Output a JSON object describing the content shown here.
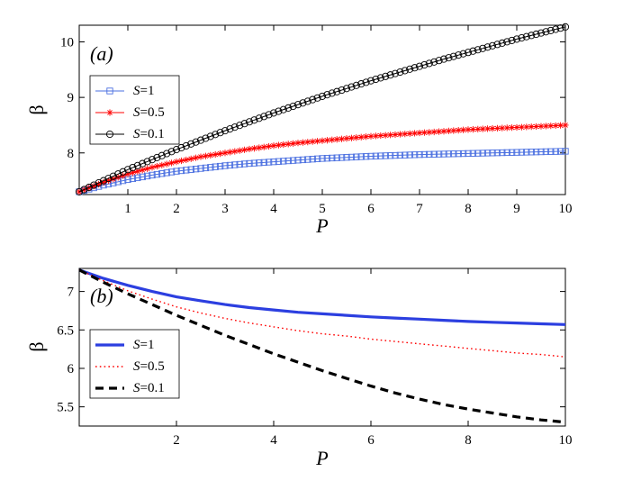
{
  "chart_data": [
    {
      "type": "line",
      "panel_label": "(a)",
      "xlabel": "P",
      "ylabel": "β",
      "xlim": [
        0,
        10
      ],
      "ylim": [
        7.25,
        10.3
      ],
      "xticks": [
        "1",
        "2",
        "3",
        "4",
        "5",
        "6",
        "7",
        "8",
        "9",
        "10"
      ],
      "yticks": [
        "8",
        "9",
        "10"
      ],
      "grid": false,
      "legend_position": "upper-left",
      "legend_entries": [
        {
          "var": "S",
          "text": "=1"
        },
        {
          "var": "S",
          "text": "=0.5"
        },
        {
          "var": "S",
          "text": "=0.1"
        }
      ],
      "series": [
        {
          "name": "S=1",
          "color": "#4a6fe0",
          "marker": "square",
          "x": [
            0,
            0.5,
            1,
            1.5,
            2,
            2.5,
            3,
            3.5,
            4,
            4.5,
            5,
            5.5,
            6,
            6.5,
            7,
            7.5,
            8,
            8.5,
            9,
            9.5,
            10
          ],
          "y": [
            7.3,
            7.42,
            7.52,
            7.6,
            7.67,
            7.72,
            7.77,
            7.81,
            7.84,
            7.87,
            7.9,
            7.92,
            7.94,
            7.955,
            7.97,
            7.98,
            7.99,
            8.0,
            8.01,
            8.02,
            8.03
          ]
        },
        {
          "name": "S=0.5",
          "color": "#ff0000",
          "marker": "star",
          "x": [
            0,
            0.5,
            1,
            1.5,
            2,
            2.5,
            3,
            3.5,
            4,
            4.5,
            5,
            5.5,
            6,
            6.5,
            7,
            7.5,
            8,
            8.5,
            9,
            9.5,
            10
          ],
          "y": [
            7.3,
            7.47,
            7.62,
            7.74,
            7.84,
            7.93,
            8.0,
            8.07,
            8.13,
            8.18,
            8.22,
            8.26,
            8.3,
            8.33,
            8.36,
            8.39,
            8.42,
            8.44,
            8.46,
            8.48,
            8.5
          ]
        },
        {
          "name": "S=0.1",
          "color": "#000000",
          "marker": "circle",
          "x": [
            0,
            0.5,
            1,
            1.5,
            2,
            2.5,
            3,
            3.5,
            4,
            4.5,
            5,
            5.5,
            6,
            6.5,
            7,
            7.5,
            8,
            8.5,
            9,
            9.5,
            10
          ],
          "y": [
            7.3,
            7.5,
            7.7,
            7.88,
            8.06,
            8.23,
            8.4,
            8.56,
            8.72,
            8.87,
            9.02,
            9.16,
            9.3,
            9.43,
            9.56,
            9.69,
            9.81,
            9.93,
            10.05,
            10.16,
            10.27
          ]
        }
      ]
    },
    {
      "type": "line",
      "panel_label": "(b)",
      "xlabel": "P",
      "ylabel": "β",
      "xlim": [
        0,
        10
      ],
      "ylim": [
        5.25,
        7.3
      ],
      "xticks": [
        "2",
        "4",
        "6",
        "8",
        "10"
      ],
      "yticks": [
        "5.5",
        "6",
        "6.5",
        "7"
      ],
      "grid": false,
      "legend_position": "lower-left",
      "legend_entries": [
        {
          "var": "S",
          "text": "=1"
        },
        {
          "var": "S",
          "text": "=0.5"
        },
        {
          "var": "S",
          "text": "=0.1"
        }
      ],
      "series": [
        {
          "name": "S=1",
          "color": "#2c3fe0",
          "style": "solid",
          "x": [
            0,
            0.5,
            1,
            1.5,
            2,
            2.5,
            3,
            3.5,
            4,
            4.5,
            5,
            5.5,
            6,
            6.5,
            7,
            7.5,
            8,
            8.5,
            9,
            9.5,
            10
          ],
          "y": [
            7.28,
            7.17,
            7.08,
            7.0,
            6.93,
            6.88,
            6.83,
            6.79,
            6.76,
            6.73,
            6.71,
            6.69,
            6.67,
            6.655,
            6.64,
            6.625,
            6.61,
            6.6,
            6.59,
            6.58,
            6.57
          ]
        },
        {
          "name": "S=0.5",
          "color": "#ff0000",
          "style": "dotted",
          "x": [
            0,
            0.5,
            1,
            1.5,
            2,
            2.5,
            3,
            3.5,
            4,
            4.5,
            5,
            5.5,
            6,
            6.5,
            7,
            7.5,
            8,
            8.5,
            9,
            9.5,
            10
          ],
          "y": [
            7.28,
            7.14,
            7.01,
            6.9,
            6.8,
            6.72,
            6.65,
            6.59,
            6.54,
            6.49,
            6.45,
            6.42,
            6.38,
            6.35,
            6.32,
            6.29,
            6.26,
            6.23,
            6.2,
            6.18,
            6.15
          ]
        },
        {
          "name": "S=0.1",
          "color": "#000000",
          "style": "dashed",
          "x": [
            0,
            0.5,
            1,
            1.5,
            2,
            2.5,
            3,
            3.5,
            4,
            4.5,
            5,
            5.5,
            6,
            6.5,
            7,
            7.5,
            8,
            8.5,
            9,
            9.5,
            10
          ],
          "y": [
            7.28,
            7.12,
            6.97,
            6.83,
            6.69,
            6.56,
            6.43,
            6.31,
            6.19,
            6.08,
            5.97,
            5.87,
            5.77,
            5.68,
            5.6,
            5.53,
            5.47,
            5.42,
            5.37,
            5.33,
            5.3
          ]
        }
      ]
    }
  ]
}
